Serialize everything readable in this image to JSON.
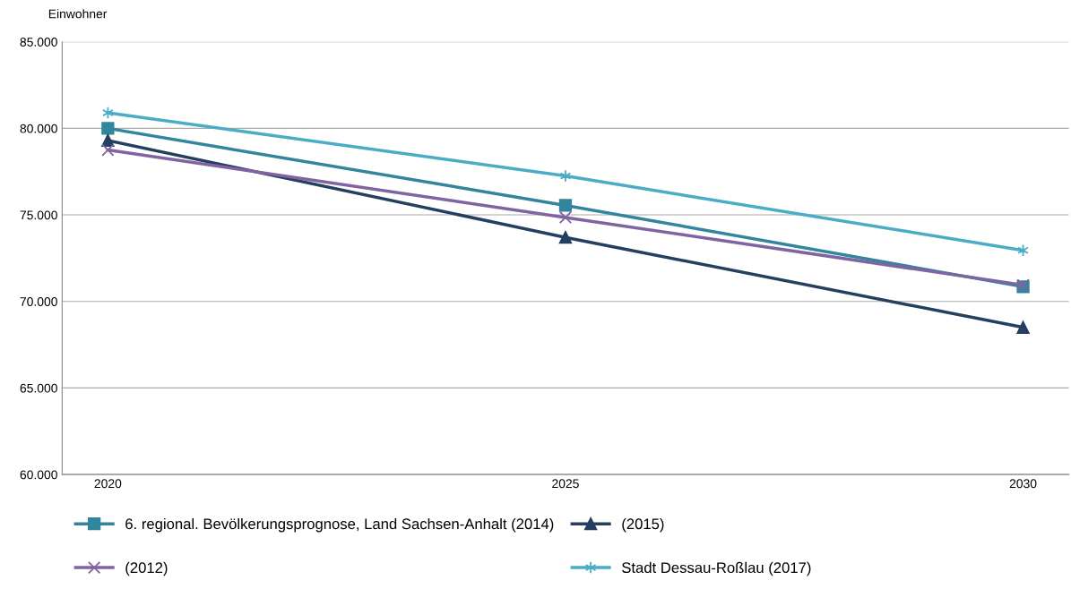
{
  "chart_data": {
    "type": "line",
    "ylabel": "Einwohner",
    "categories": [
      "2020",
      "2025",
      "2030"
    ],
    "series": [
      {
        "name": "6. regional. Bevölkerungsprognose, Land Sachsen-Anhalt (2014)",
        "color": "#31859c",
        "marker": "square",
        "values": [
          80000,
          75550,
          70850
        ]
      },
      {
        "name": "(2015)",
        "color": "#243f60",
        "marker": "triangle",
        "values": [
          79300,
          73700,
          68500
        ]
      },
      {
        "name": "(2012)",
        "color": "#8064a2",
        "marker": "cross",
        "values": [
          78750,
          74850,
          70950
        ]
      },
      {
        "name": "Stadt Dessau-Roßlau (2017)",
        "color": "#4bacc6",
        "marker": "cross",
        "values": [
          80900,
          77250,
          72950
        ]
      }
    ],
    "ylim": [
      60000,
      85000
    ],
    "yticks": [
      {
        "value": 60000,
        "label": "60.000"
      },
      {
        "value": 65000,
        "label": "65.000"
      },
      {
        "value": 70000,
        "label": "70.000"
      },
      {
        "value": 75000,
        "label": "75.000"
      },
      {
        "value": 80000,
        "label": "80.000"
      },
      {
        "value": 85000,
        "label": "85.000"
      }
    ],
    "grid": "y",
    "legend": "bottom",
    "line_style": "solid"
  }
}
